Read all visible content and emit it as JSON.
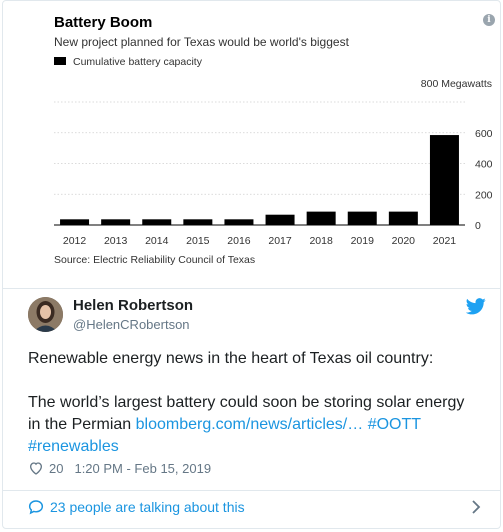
{
  "chart_data": {
    "type": "bar",
    "title": "Battery Boom",
    "subtitle": "New project planned for Texas would be world's biggest",
    "legend": "Cumulative battery capacity",
    "unit_label": "800 Megawatts",
    "source": "Source: Electric Reliability Council of Texas",
    "categories": [
      "2012",
      "2013",
      "2014",
      "2015",
      "2016",
      "2017",
      "2018",
      "2019",
      "2020",
      "2021"
    ],
    "values": [
      37,
      37,
      37,
      37,
      37,
      67,
      87,
      87,
      87,
      585
    ],
    "ylim": [
      0,
      800
    ],
    "yticks": [
      "0",
      "200",
      "400",
      "600"
    ],
    "bar_color": "#000000"
  },
  "tweet": {
    "name": "Helen Robertson",
    "handle": "@HelenCRobertson",
    "line1": "Renewable energy news in the heart of Texas oil country:",
    "line2_start": "The world’s largest battery could soon be storing solar energy in the Permian ",
    "link": "bloomberg.com/news/articles/…",
    "hashtag1": "#OOTT",
    "hashtag2": "#renewables",
    "likes": "20",
    "timestamp": "1:20 PM - Feb 15, 2019",
    "talking": "23 people are talking about this"
  },
  "colors": {
    "link": "#1b95e0",
    "muted": "#657786"
  }
}
